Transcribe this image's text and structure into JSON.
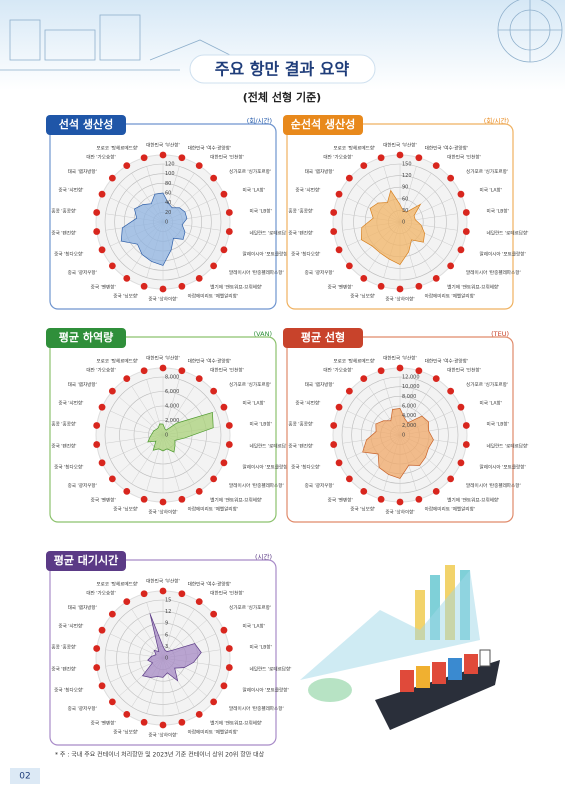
{
  "header": {
    "title": "주요 항만 결과 요약",
    "subtitle": "(전체 선형 기준)"
  },
  "chart_data": [
    {
      "type": "radar",
      "title": "선석 생산성",
      "unit": "(회/시간)",
      "color": "#8fb3e0",
      "stroke": "#2f5fa8",
      "categories": [
        "대한민국 '부산항'",
        "대한민국 '여수·광양항'",
        "대한민국 '인천항'",
        "싱가포르 '싱가포르항'",
        "미국 'LA항'",
        "미국 'LB항'",
        "네덜란드 '로테르담항'",
        "말레이시아 '포트클랑항'",
        "말레이시아 '탄중펠레파스항'",
        "벨기에 '앤트워프-브뤼헤항'",
        "아랍에미리트 '제벨알리항'",
        "중국 '상하이항'",
        "중국 '닝보항'",
        "중국 '옌톈항'",
        "중국 '광저우항'",
        "중국 '칭다오항'",
        "중국 '톈진항'",
        "홍콩 '홍콩항'",
        "중국 '샤먼항'",
        "태국 '램차방항'",
        "대만 '가오슝항'",
        "모로코 '탕헤르메드항'"
      ],
      "values": [
        60,
        40,
        35,
        45,
        50,
        50,
        40,
        50,
        55,
        40,
        60,
        90,
        85,
        80,
        70,
        95,
        85,
        55,
        65,
        55,
        45,
        60
      ],
      "ylim": [
        0,
        120
      ],
      "yticks": [
        0,
        20,
        40,
        60,
        80,
        100,
        120
      ]
    },
    {
      "type": "radar",
      "title": "순선석 생산성",
      "unit": "(회/시간)",
      "color": "#f2b466",
      "stroke": "#d7801f",
      "categories": [
        "대한민국 '부산항'",
        "대한민국 '여수·광양항'",
        "대한민국 '인천항'",
        "싱가포르 '싱가포르항'",
        "미국 'LA항'",
        "미국 'LB항'",
        "네덜란드 '로테르담항'",
        "말레이시아 '포트클랑항'",
        "말레이시아 '탄중펠레파스항'",
        "벨기에 '앤트워프-브뤼헤항'",
        "아랍에미리트 '제벨알리항'",
        "중국 '상하이항'",
        "중국 '닝보항'",
        "중국 '옌톈항'",
        "중국 '광저우항'",
        "중국 '칭다오항'",
        "중국 '톈진항'",
        "홍콩 '홍콩항'",
        "중국 '샤먼항'",
        "태국 '램차방항'",
        "대만 '가오슝항'",
        "모로코 '탕헤르메드항'"
      ],
      "values": [
        45,
        30,
        30,
        70,
        40,
        40,
        55,
        70,
        80,
        55,
        80,
        110,
        100,
        95,
        95,
        110,
        100,
        70,
        85,
        75,
        60,
        85
      ],
      "ylim": [
        0,
        150
      ],
      "yticks": [
        0,
        30,
        60,
        90,
        120,
        150
      ]
    },
    {
      "type": "radar",
      "title": "평균 하역량",
      "unit": "(VAN)",
      "color": "#a9d17a",
      "stroke": "#4e9a2e",
      "categories": [
        "대한민국 '부산항'",
        "대한민국 '여수·광양항'",
        "대한민국 '인천항'",
        "싱가포르 '싱가포르항'",
        "미국 'LA항'",
        "미국 'LB항'",
        "네덜란드 '로테르담항'",
        "말레이시아 '포트클랑항'",
        "말레이시아 '탄중펠레파스항'",
        "벨기에 '앤트워프-브뤼헤항'",
        "아랍에미리트 '제벨알리항'",
        "중국 '상하이항'",
        "중국 '닝보항'",
        "중국 '옌톈항'",
        "중국 '광저우항'",
        "중국 '칭다오항'",
        "중국 '톈진항'",
        "홍콩 '홍콩항'",
        "중국 '샤먼항'",
        "태국 '램차방항'",
        "대만 '가오슝항'",
        "모로코 '탕헤르메드항'"
      ],
      "values": [
        1500,
        900,
        800,
        2500,
        7500,
        7000,
        3000,
        1800,
        2200,
        2800,
        2000,
        2200,
        2000,
        2500,
        1300,
        2300,
        1800,
        1500,
        1400,
        1200,
        1200,
        1600
      ],
      "ylim": [
        0,
        8000
      ],
      "yticks": [
        0,
        {
          "value": 2000,
          "label": "2,000"
        },
        {
          "value": 4000,
          "label": "4,000"
        },
        {
          "value": 6000,
          "label": "6,000"
        },
        {
          "value": 8000,
          "label": "8,000"
        }
      ]
    },
    {
      "type": "radar",
      "title": "평균 선형",
      "unit": "(TEU)",
      "color": "#f0a868",
      "stroke": "#c8632b",
      "categories": [
        "대한민국 '부산항'",
        "대한민국 '여수·광양항'",
        "대한민국 '인천항'",
        "싱가포르 '싱가포르항'",
        "미국 'LA항'",
        "미국 'LB항'",
        "네덜란드 '로테르담항'",
        "말레이시아 '포트클랑항'",
        "말레이시아 '탄중펠레파스항'",
        "벨기에 '앤트워프-브뤼헤항'",
        "아랍에미리트 '제벨알리항'",
        "중국 '상하이항'",
        "중국 '닝보항'",
        "중국 '옌톈항'",
        "중국 '광저우항'",
        "중국 '칭다오항'",
        "중국 '톈진항'",
        "홍콩 '홍콩항'",
        "중국 '샤먼항'",
        "태국 '램차방항'",
        "대만 '가오슝항'",
        "모로코 '탕헤르메드항'"
      ],
      "values": [
        5500,
        3500,
        3000,
        6000,
        6500,
        6000,
        7000,
        6500,
        7000,
        7500,
        6500,
        9000,
        8500,
        8000,
        6000,
        8500,
        7000,
        5000,
        5500,
        4500,
        3500,
        5500
      ],
      "ylim": [
        0,
        12000
      ],
      "yticks": [
        0,
        {
          "value": 2000,
          "label": "2,000"
        },
        {
          "value": 4000,
          "label": "4,000"
        },
        {
          "value": 6000,
          "label": "6,000"
        },
        {
          "value": 8000,
          "label": "8,000"
        },
        {
          "value": 10000,
          "label": "10,000"
        },
        {
          "value": 12000,
          "label": "12,000"
        }
      ]
    },
    {
      "type": "radar",
      "title": "평균 대기시간",
      "unit": "(시간)",
      "color": "#a68ac4",
      "stroke": "#5b3a86",
      "categories": [
        "대한민국 '부산항'",
        "대한민국 '여수·광양항'",
        "대한민국 '인천항'",
        "싱가포르 '싱가포르항'",
        "미국 'LA항'",
        "미국 'LB항'",
        "네덜란드 '로테르담항'",
        "말레이시아 '포트클랑항'",
        "말레이시아 '탄중펠레파스항'",
        "벨기에 '앤트워프-브뤼헤항'",
        "아랍에미리트 '제벨알리항'",
        "중국 '상하이항'",
        "중국 '닝보항'",
        "중국 '옌톈항'",
        "중국 '광저우항'",
        "중국 '칭다오항'",
        "중국 '톈진항'",
        "홍콩 '홍콩항'",
        "중국 '샤먼항'",
        "태국 '램차방항'",
        "대만 '가오슝항'",
        "모로코 '탕헤르메드항'"
      ],
      "values": [
        3,
        2,
        2,
        3,
        9,
        10,
        8,
        6,
        4,
        7,
        4,
        5,
        5,
        6,
        7,
        3,
        4,
        3,
        2,
        3,
        2,
        12
      ],
      "ylim": [
        0,
        15
      ],
      "yticks": [
        0,
        3,
        6,
        9,
        12,
        15
      ]
    }
  ],
  "footnote": "* 주 : 국내 주요 컨테이너 처리항만 및 2023년 기준 컨테이너 상위 20위 항만 대상",
  "page_number": "02"
}
